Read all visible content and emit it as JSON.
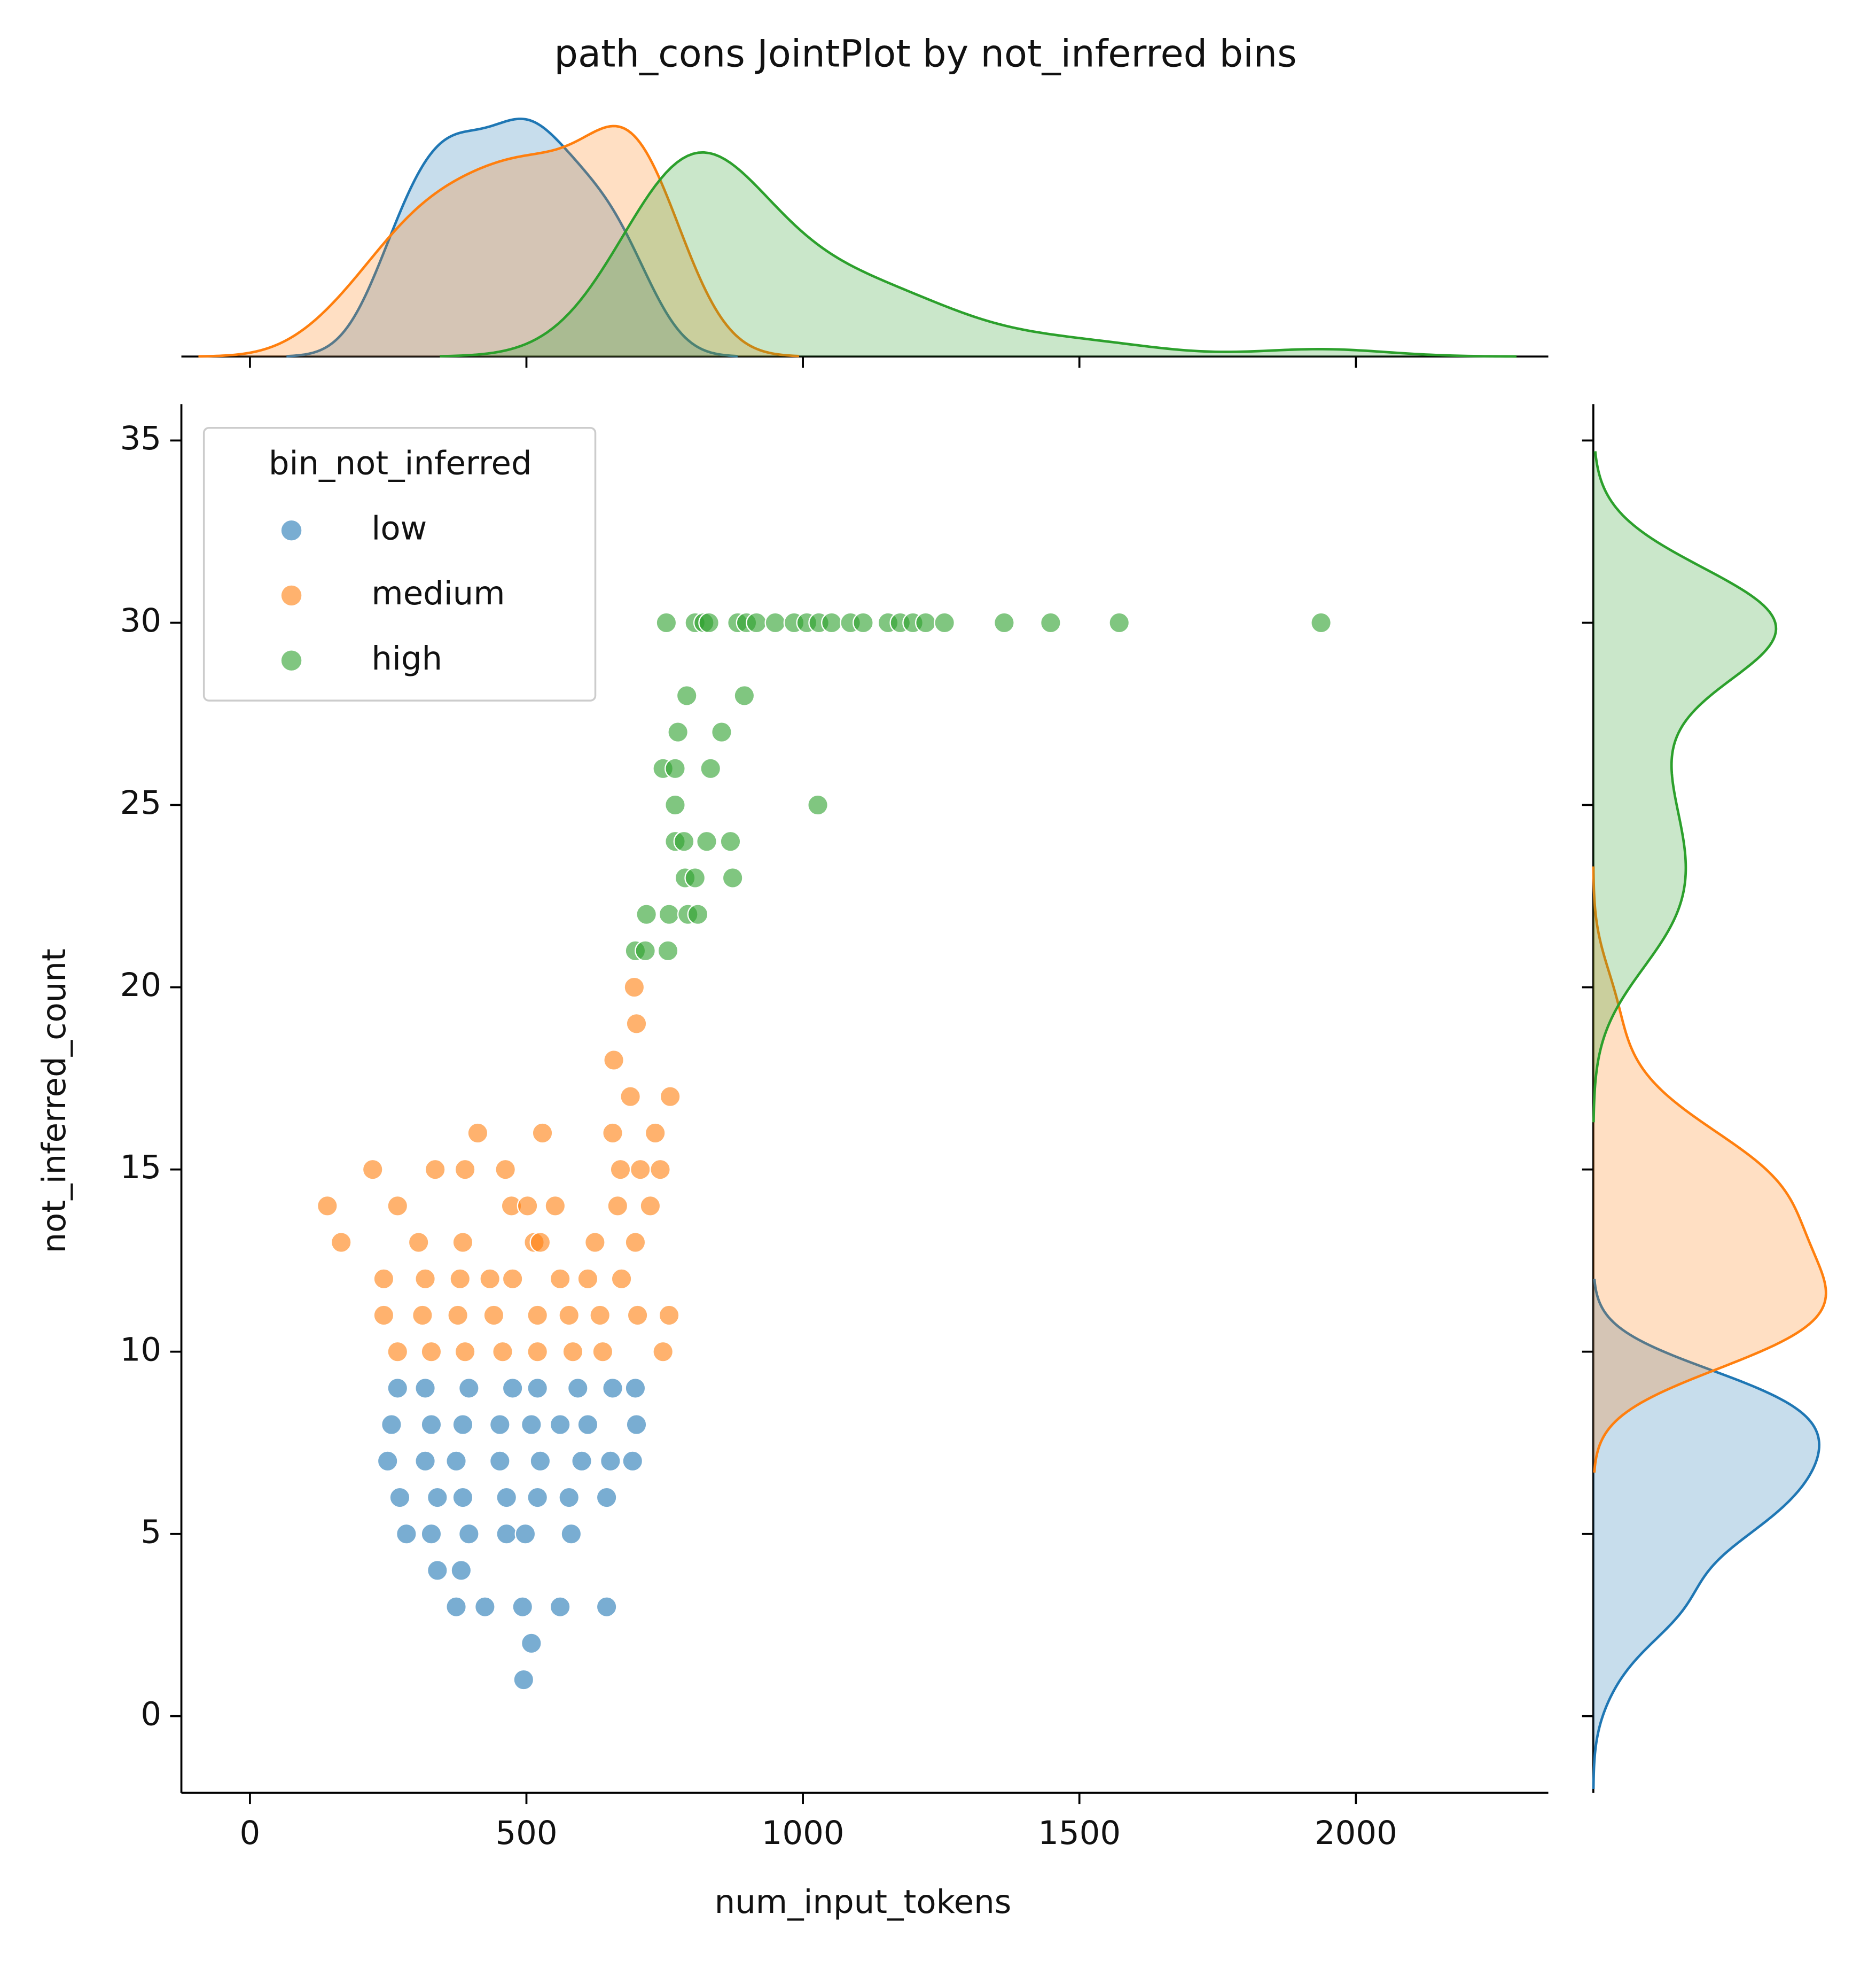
{
  "chart_data": {
    "type": "scatter",
    "title": "path_cons JointPlot by not_inferred bins",
    "xlabel": "num_input_tokens",
    "ylabel": "not_inferred_count",
    "legend_title": "bin_not_inferred",
    "legend": "upper left",
    "marginal": "kde",
    "xlim": [
      -124,
      2348
    ],
    "ylim": [
      -2.1,
      36
    ],
    "xticks": [
      0,
      500,
      1000,
      1500,
      2000
    ],
    "yticks": [
      0,
      5,
      10,
      15,
      20,
      25,
      30,
      35
    ],
    "series": [
      {
        "name": "low",
        "color": "#1f77b4",
        "x": [
          267,
          317,
          396,
          475,
          520,
          593,
          656,
          697,
          256,
          328,
          385,
          452,
          509,
          561,
          611,
          699,
          249,
          317,
          373,
          452,
          525,
          600,
          652,
          692,
          271,
          339,
          385,
          464,
          520,
          577,
          645,
          283,
          328,
          396,
          464,
          498,
          581,
          339,
          382,
          373,
          425,
          493,
          561,
          645,
          509,
          495
        ],
        "y": [
          9,
          9,
          9,
          9,
          9,
          9,
          9,
          9,
          8,
          8,
          8,
          8,
          8,
          8,
          8,
          8,
          7,
          7,
          7,
          7,
          7,
          7,
          7,
          7,
          6,
          6,
          6,
          6,
          6,
          6,
          6,
          5,
          5,
          5,
          5,
          5,
          5,
          4,
          4,
          3,
          3,
          3,
          3,
          3,
          2,
          1
        ]
      },
      {
        "name": "medium",
        "color": "#ff7f0e",
        "x": [
          695,
          699,
          658,
          688,
          760,
          412,
          529,
          656,
          733,
          222,
          335,
          389,
          462,
          670,
          706,
          742,
          140,
          267,
          473,
          502,
          552,
          665,
          724,
          165,
          305,
          385,
          514,
          525,
          624,
          697,
          242,
          317,
          380,
          434,
          475,
          561,
          611,
          672,
          242,
          312,
          376,
          441,
          520,
          577,
          633,
          701,
          758,
          267,
          328,
          389,
          457,
          520,
          584,
          638,
          747
        ],
        "y": [
          20,
          19,
          18,
          17,
          17,
          16,
          16,
          16,
          16,
          15,
          15,
          15,
          15,
          15,
          15,
          15,
          14,
          14,
          14,
          14,
          14,
          14,
          14,
          13,
          13,
          13,
          13,
          13,
          13,
          13,
          12,
          12,
          12,
          12,
          12,
          12,
          12,
          12,
          11,
          11,
          11,
          11,
          11,
          11,
          11,
          11,
          11,
          10,
          10,
          10,
          10,
          10,
          10,
          10,
          10
        ]
      },
      {
        "name": "high",
        "color": "#2ca02c",
        "x": [
          753,
          805,
          821,
          830,
          882,
          898,
          916,
          950,
          984,
          1007,
          1029,
          1052,
          1086,
          1109,
          1154,
          1176,
          1199,
          1222,
          1256,
          1364,
          1448,
          1572,
          1937,
          790,
          894,
          774,
          853,
          747,
          769,
          833,
          769,
          1027,
          769,
          785,
          826,
          869,
          787,
          805,
          873,
          717,
          758,
          792,
          810,
          697,
          715,
          756
        ],
        "y": [
          30,
          30,
          30,
          30,
          30,
          30,
          30,
          30,
          30,
          30,
          30,
          30,
          30,
          30,
          30,
          30,
          30,
          30,
          30,
          30,
          30,
          30,
          30,
          28,
          28,
          27,
          27,
          26,
          26,
          26,
          25,
          25,
          24,
          24,
          24,
          24,
          23,
          23,
          23,
          22,
          22,
          22,
          22,
          21,
          21,
          21
        ]
      }
    ]
  }
}
